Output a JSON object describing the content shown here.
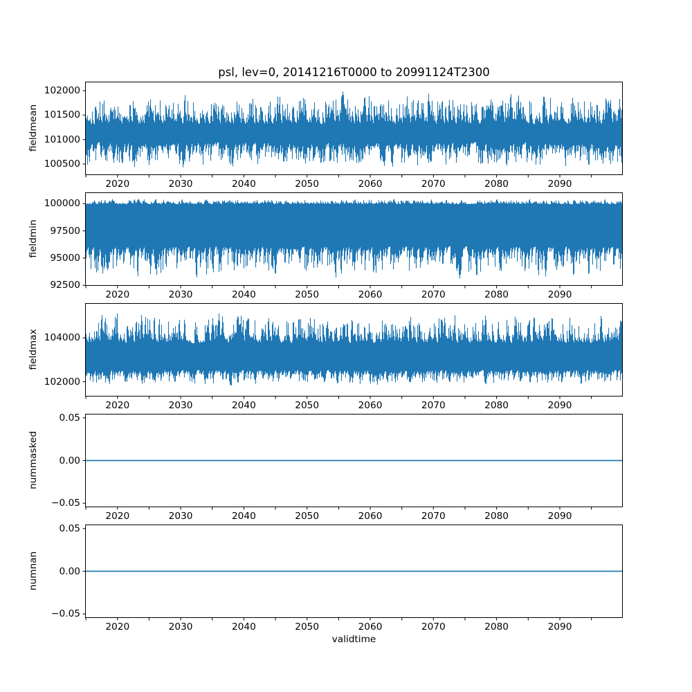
{
  "figure": {
    "title": "psl, lev=0, 20141216T0000 to 20991124T2300",
    "xlabel": "validtime",
    "line_color": "#1f77b4",
    "axis_color": "#000000",
    "text_color": "#000000",
    "background": "#ffffff"
  },
  "x_axis": {
    "lim": [
      2014.88,
      2099.97
    ],
    "major_ticks": [
      2020,
      2030,
      2040,
      2050,
      2060,
      2070,
      2080,
      2090
    ],
    "major_labels": [
      "2020",
      "2030",
      "2040",
      "2050",
      "2060",
      "2070",
      "2080",
      "2090"
    ],
    "minor_ticks": [
      2015,
      2025,
      2035,
      2045,
      2055,
      2065,
      2075,
      2085,
      2095
    ]
  },
  "chart_data": [
    {
      "type": "line",
      "name": "fieldmean",
      "title": "psl, lev=0, 20141216T0000 to 20991124T2300",
      "xlabel": "",
      "ylabel": "fieldmean",
      "ylim": [
        100274,
        102184
      ],
      "yticks": [
        100500,
        101000,
        101500,
        102000
      ],
      "ytick_labels": [
        "100500",
        "101000",
        "101500",
        "102000"
      ],
      "grid": false,
      "legend": false,
      "series": {
        "kind": "dense-noise",
        "description": "hourly psl field mean, dense high-frequency noise band",
        "seed": 101,
        "approx_mean": 101200,
        "approx_min": 100350,
        "approx_max": 102050,
        "top_base": 101300,
        "top_var": 750,
        "top_pow": 2.2,
        "bottom_base": 100950,
        "bottom_var": 600,
        "bottom_pow": 2.0,
        "smooth": 0.35
      }
    },
    {
      "type": "line",
      "name": "fieldmin",
      "xlabel": "",
      "ylabel": "fieldmin",
      "ylim": [
        92455,
        101037
      ],
      "yticks": [
        92500,
        95000,
        97500,
        100000
      ],
      "ytick_labels": [
        "92500",
        "95000",
        "97500",
        "100000"
      ],
      "grid": false,
      "legend": false,
      "series": {
        "kind": "dense-noise",
        "description": "hourly psl field minimum, dense band near 96000-100000 with deep downward spikes",
        "seed": 202,
        "approx_mean": 97800,
        "approx_min": 92800,
        "approx_max": 100500,
        "top_base": 99950,
        "top_var": 550,
        "top_pow": 2.5,
        "bottom_base": 96100,
        "bottom_var": 3300,
        "bottom_pow": 2.6,
        "smooth": 0.35
      }
    },
    {
      "type": "line",
      "name": "fieldmax",
      "xlabel": "",
      "ylabel": "fieldmax",
      "ylim": [
        101326,
        105590
      ],
      "yticks": [
        102000,
        104000
      ],
      "ytick_labels": [
        "102000",
        "104000"
      ],
      "grid": false,
      "legend": false,
      "series": {
        "kind": "dense-noise",
        "description": "hourly psl field maximum, dense band 102300-104100 with upward spikes to ~105400",
        "seed": 303,
        "approx_mean": 103200,
        "approx_min": 101790,
        "approx_max": 105430,
        "top_base": 103750,
        "top_var": 1550,
        "top_pow": 2.4,
        "bottom_base": 102550,
        "bottom_var": 780,
        "bottom_pow": 2.2,
        "smooth": 0.35
      }
    },
    {
      "type": "line",
      "name": "nummasked",
      "xlabel": "",
      "ylabel": "nummasked",
      "ylim": [
        -0.0547,
        0.0547
      ],
      "yticks": [
        -0.05,
        0,
        0.05
      ],
      "ytick_labels": [
        "−0.05",
        "0.00",
        "0.05"
      ],
      "grid": false,
      "legend": false,
      "series": {
        "kind": "constant",
        "description": "number of masked points, constant zero for entire period",
        "value": 0
      }
    },
    {
      "type": "line",
      "name": "numnan",
      "xlabel": "validtime",
      "ylabel": "numnan",
      "ylim": [
        -0.0547,
        0.0547
      ],
      "yticks": [
        -0.05,
        0,
        0.05
      ],
      "ytick_labels": [
        "−0.05",
        "0.00",
        "0.05"
      ],
      "grid": false,
      "legend": false,
      "series": {
        "kind": "constant",
        "description": "number of NaN points, constant zero for entire period",
        "value": 0
      }
    }
  ]
}
